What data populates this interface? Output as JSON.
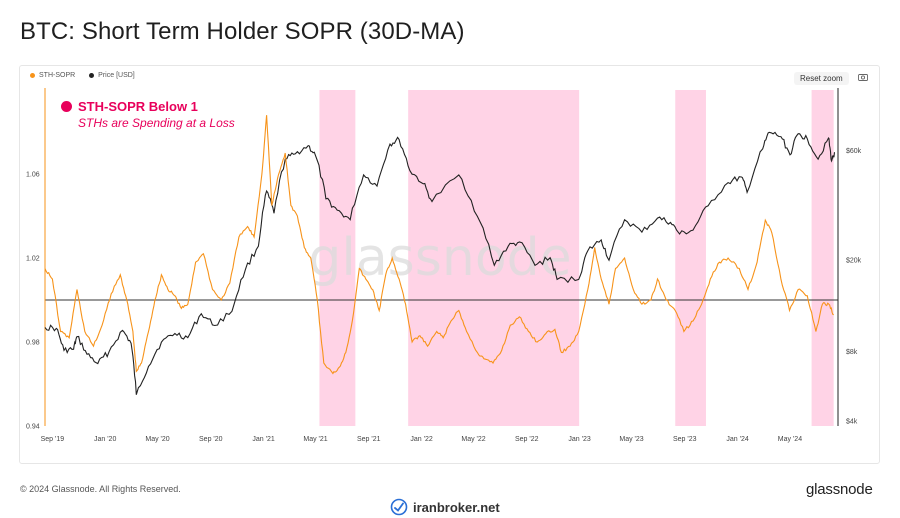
{
  "title": "BTC: Short Term Holder SOPR (30D-MA)",
  "legend": [
    {
      "name": "STH-SOPR",
      "color": "#f7931a"
    },
    {
      "name": "Price [USD]",
      "color": "#222222"
    }
  ],
  "reset_zoom": "Reset zoom",
  "annotation": {
    "title": "STH-SOPR Below 1",
    "subtitle": "STHs are Spending at a Loss",
    "color": "#e8005b"
  },
  "watermark": "glassnode",
  "footer": {
    "copyright": "© 2024 Glassnode. All Rights Reserved.",
    "logo": "glassnode",
    "brand": "iranbroker.net"
  },
  "icons": {
    "camera": "camera-icon",
    "brand": "checkmark-chart-icon"
  },
  "chart_data": {
    "type": "line",
    "x_ticks": [
      "Sep '19",
      "Jan '20",
      "May '20",
      "Sep '20",
      "Jan '21",
      "May '21",
      "Sep '21",
      "Jan '22",
      "May '22",
      "Sep '22",
      "Jan '23",
      "May '23",
      "Sep '23",
      "Jan '24",
      "May '24"
    ],
    "x_range": [
      "2019-08-15",
      "2024-08-15"
    ],
    "left_axis": {
      "ticks": [
        "0.94",
        "0.98",
        "1.02",
        "1.06"
      ],
      "range": [
        0.94,
        1.1
      ]
    },
    "right_axis": {
      "ticks": [
        "$4k",
        "$8k",
        "$20k",
        "$60k"
      ],
      "scale": "log",
      "range": [
        4000,
        100000
      ]
    },
    "reference_line": 1.0,
    "loss_zones": [
      [
        "2021-05-10",
        "2021-08-01"
      ],
      [
        "2021-12-01",
        "2022-12-31"
      ],
      [
        "2023-08-10",
        "2023-10-20"
      ],
      [
        "2024-06-20",
        "2024-08-10"
      ]
    ],
    "series": [
      {
        "name": "STH-SOPR",
        "axis": "left",
        "color": "#f7931a",
        "points": [
          [
            "2019-08-15",
            1.015
          ],
          [
            "2019-09-01",
            1.01
          ],
          [
            "2019-09-20",
            0.985
          ],
          [
            "2019-10-10",
            0.982
          ],
          [
            "2019-10-28",
            1.005
          ],
          [
            "2019-11-15",
            0.985
          ],
          [
            "2019-12-05",
            0.978
          ],
          [
            "2019-12-25",
            0.988
          ],
          [
            "2020-01-15",
            1.003
          ],
          [
            "2020-02-05",
            1.012
          ],
          [
            "2020-02-20",
            1.0
          ],
          [
            "2020-03-05",
            0.985
          ],
          [
            "2020-03-13",
            0.966
          ],
          [
            "2020-03-25",
            0.97
          ],
          [
            "2020-04-10",
            0.985
          ],
          [
            "2020-04-25",
            1.0
          ],
          [
            "2020-05-10",
            1.012
          ],
          [
            "2020-05-25",
            1.005
          ],
          [
            "2020-06-10",
            1.002
          ],
          [
            "2020-06-25",
            0.996
          ],
          [
            "2020-07-10",
            0.998
          ],
          [
            "2020-07-28",
            1.018
          ],
          [
            "2020-08-15",
            1.022
          ],
          [
            "2020-09-05",
            1.005
          ],
          [
            "2020-09-25",
            1.0
          ],
          [
            "2020-10-15",
            1.008
          ],
          [
            "2020-11-05",
            1.03
          ],
          [
            "2020-11-25",
            1.035
          ],
          [
            "2020-12-10",
            1.03
          ],
          [
            "2020-12-28",
            1.06
          ],
          [
            "2021-01-08",
            1.088
          ],
          [
            "2021-01-20",
            1.045
          ],
          [
            "2021-02-05",
            1.06
          ],
          [
            "2021-02-20",
            1.07
          ],
          [
            "2021-03-05",
            1.045
          ],
          [
            "2021-03-20",
            1.04
          ],
          [
            "2021-04-05",
            1.025
          ],
          [
            "2021-04-20",
            1.02
          ],
          [
            "2021-05-05",
            1.0
          ],
          [
            "2021-05-20",
            0.97
          ],
          [
            "2021-06-10",
            0.965
          ],
          [
            "2021-06-25",
            0.968
          ],
          [
            "2021-07-10",
            0.975
          ],
          [
            "2021-07-25",
            0.99
          ],
          [
            "2021-08-10",
            1.015
          ],
          [
            "2021-08-25",
            1.01
          ],
          [
            "2021-09-10",
            1.005
          ],
          [
            "2021-09-25",
            0.995
          ],
          [
            "2021-10-10",
            1.012
          ],
          [
            "2021-10-25",
            1.02
          ],
          [
            "2021-11-10",
            1.01
          ],
          [
            "2021-11-25",
            0.998
          ],
          [
            "2021-12-10",
            0.98
          ],
          [
            "2021-12-28",
            0.983
          ],
          [
            "2022-01-15",
            0.978
          ],
          [
            "2022-02-05",
            0.985
          ],
          [
            "2022-02-20",
            0.982
          ],
          [
            "2022-03-10",
            0.99
          ],
          [
            "2022-03-28",
            0.995
          ],
          [
            "2022-04-15",
            0.985
          ],
          [
            "2022-05-10",
            0.975
          ],
          [
            "2022-05-25",
            0.972
          ],
          [
            "2022-06-15",
            0.97
          ],
          [
            "2022-07-05",
            0.976
          ],
          [
            "2022-07-25",
            0.988
          ],
          [
            "2022-08-15",
            0.992
          ],
          [
            "2022-09-05",
            0.985
          ],
          [
            "2022-09-25",
            0.98
          ],
          [
            "2022-10-15",
            0.984
          ],
          [
            "2022-11-05",
            0.986
          ],
          [
            "2022-11-20",
            0.975
          ],
          [
            "2022-12-10",
            0.978
          ],
          [
            "2022-12-30",
            0.985
          ],
          [
            "2023-01-20",
            1.005
          ],
          [
            "2023-02-05",
            1.025
          ],
          [
            "2023-02-20",
            1.01
          ],
          [
            "2023-03-10",
            0.998
          ],
          [
            "2023-03-25",
            1.015
          ],
          [
            "2023-04-15",
            1.02
          ],
          [
            "2023-05-05",
            1.005
          ],
          [
            "2023-05-25",
            0.998
          ],
          [
            "2023-06-15",
            1.0
          ],
          [
            "2023-06-30",
            1.01
          ],
          [
            "2023-07-20",
            1.0
          ],
          [
            "2023-08-10",
            0.995
          ],
          [
            "2023-08-30",
            0.985
          ],
          [
            "2023-09-20",
            0.99
          ],
          [
            "2023-10-10",
            0.998
          ],
          [
            "2023-10-30",
            1.01
          ],
          [
            "2023-11-20",
            1.018
          ],
          [
            "2023-12-10",
            1.02
          ],
          [
            "2024-01-05",
            1.015
          ],
          [
            "2024-01-25",
            1.005
          ],
          [
            "2024-02-15",
            1.018
          ],
          [
            "2024-03-05",
            1.038
          ],
          [
            "2024-03-20",
            1.032
          ],
          [
            "2024-04-10",
            1.01
          ],
          [
            "2024-04-30",
            0.995
          ],
          [
            "2024-05-20",
            1.005
          ],
          [
            "2024-06-10",
            1.002
          ],
          [
            "2024-06-30",
            0.985
          ],
          [
            "2024-07-15",
            0.998
          ],
          [
            "2024-07-30",
            0.998
          ],
          [
            "2024-08-10",
            0.993
          ]
        ]
      },
      {
        "name": "Price [USD]",
        "axis": "right",
        "color": "#222222",
        "points": [
          [
            "2019-08-15",
            10200
          ],
          [
            "2019-09-10",
            10100
          ],
          [
            "2019-09-28",
            8100
          ],
          [
            "2019-10-20",
            8200
          ],
          [
            "2019-10-28",
            9300
          ],
          [
            "2019-11-20",
            7800
          ],
          [
            "2019-12-15",
            7100
          ],
          [
            "2020-01-10",
            8000
          ],
          [
            "2020-02-10",
            9900
          ],
          [
            "2020-03-01",
            8700
          ],
          [
            "2020-03-13",
            5200
          ],
          [
            "2020-04-10",
            6900
          ],
          [
            "2020-05-10",
            8800
          ],
          [
            "2020-06-10",
            9600
          ],
          [
            "2020-07-10",
            9200
          ],
          [
            "2020-08-10",
            11700
          ],
          [
            "2020-09-10",
            10400
          ],
          [
            "2020-10-20",
            12000
          ],
          [
            "2020-11-20",
            18200
          ],
          [
            "2020-12-20",
            23000
          ],
          [
            "2021-01-08",
            40000
          ],
          [
            "2021-01-25",
            32000
          ],
          [
            "2021-02-20",
            55000
          ],
          [
            "2021-03-15",
            58000
          ],
          [
            "2021-04-14",
            63000
          ],
          [
            "2021-05-01",
            57000
          ],
          [
            "2021-05-25",
            37000
          ],
          [
            "2021-06-20",
            33000
          ],
          [
            "2021-07-20",
            30000
          ],
          [
            "2021-08-20",
            47000
          ],
          [
            "2021-09-20",
            42000
          ],
          [
            "2021-10-20",
            64000
          ],
          [
            "2021-11-10",
            67000
          ],
          [
            "2021-12-05",
            49000
          ],
          [
            "2022-01-05",
            43000
          ],
          [
            "2022-01-25",
            36000
          ],
          [
            "2022-03-28",
            47000
          ],
          [
            "2022-05-10",
            31000
          ],
          [
            "2022-06-18",
            19000
          ],
          [
            "2022-07-20",
            23000
          ],
          [
            "2022-08-15",
            24000
          ],
          [
            "2022-09-20",
            19000
          ],
          [
            "2022-10-25",
            20500
          ],
          [
            "2022-11-10",
            16500
          ],
          [
            "2022-12-30",
            16500
          ],
          [
            "2023-01-20",
            22000
          ],
          [
            "2023-02-20",
            24500
          ],
          [
            "2023-03-10",
            20000
          ],
          [
            "2023-04-15",
            30000
          ],
          [
            "2023-05-25",
            26500
          ],
          [
            "2023-06-30",
            30500
          ],
          [
            "2023-07-30",
            29200
          ],
          [
            "2023-08-20",
            26000
          ],
          [
            "2023-09-20",
            27000
          ],
          [
            "2023-10-25",
            34500
          ],
          [
            "2023-12-10",
            43500
          ],
          [
            "2024-01-10",
            46000
          ],
          [
            "2024-01-23",
            39500
          ],
          [
            "2024-02-28",
            61000
          ],
          [
            "2024-03-14",
            72000
          ],
          [
            "2024-04-10",
            69000
          ],
          [
            "2024-05-01",
            57500
          ],
          [
            "2024-05-20",
            71000
          ],
          [
            "2024-06-10",
            67500
          ],
          [
            "2024-07-05",
            55000
          ],
          [
            "2024-07-29",
            68000
          ],
          [
            "2024-08-05",
            54000
          ],
          [
            "2024-08-12",
            59000
          ]
        ]
      }
    ]
  }
}
